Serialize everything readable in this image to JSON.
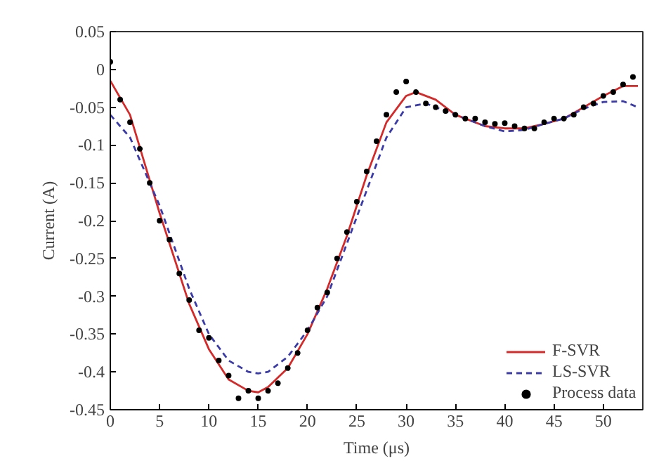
{
  "chart_data": {
    "type": "line",
    "xlabel": "Time (μs)",
    "ylabel": "Current (A)",
    "xlim": [
      0,
      54
    ],
    "ylim": [
      -0.45,
      0.05
    ],
    "xticks": [
      0,
      5,
      10,
      15,
      20,
      25,
      30,
      35,
      40,
      45,
      50
    ],
    "yticks": [
      0.05,
      0,
      -0.05,
      -0.1,
      -0.15,
      -0.2,
      -0.25,
      -0.3,
      -0.35,
      -0.4,
      -0.45
    ],
    "grid": false,
    "legend": "bottom right",
    "series": [
      {
        "name": "F-SVR",
        "color": "#d42a2a",
        "line_style": "solid",
        "x": [
          0,
          2,
          5,
          8,
          10,
          12,
          14,
          15,
          16,
          18,
          20,
          22,
          24,
          26,
          28,
          30,
          31,
          33,
          35,
          38,
          40,
          42,
          44,
          46,
          48,
          50,
          52,
          53.5
        ],
        "values": [
          -0.015,
          -0.06,
          -0.19,
          -0.31,
          -0.37,
          -0.41,
          -0.425,
          -0.427,
          -0.42,
          -0.395,
          -0.35,
          -0.29,
          -0.22,
          -0.14,
          -0.07,
          -0.035,
          -0.03,
          -0.04,
          -0.06,
          -0.075,
          -0.078,
          -0.078,
          -0.072,
          -0.065,
          -0.05,
          -0.035,
          -0.022,
          -0.022
        ]
      },
      {
        "name": "LS-SVR",
        "color": "#3a3aa8",
        "line_style": "dashed",
        "x": [
          0,
          2,
          5,
          8,
          10,
          12,
          14,
          15,
          16,
          18,
          20,
          22,
          24,
          26,
          28,
          30,
          32,
          35,
          38,
          40,
          42,
          44,
          46,
          48,
          50,
          52,
          53.5
        ],
        "values": [
          -0.06,
          -0.09,
          -0.18,
          -0.29,
          -0.35,
          -0.385,
          -0.4,
          -0.402,
          -0.4,
          -0.38,
          -0.345,
          -0.3,
          -0.23,
          -0.16,
          -0.09,
          -0.05,
          -0.045,
          -0.06,
          -0.075,
          -0.082,
          -0.08,
          -0.072,
          -0.065,
          -0.052,
          -0.043,
          -0.042,
          -0.05
        ]
      },
      {
        "name": "Process data",
        "type": "scatter",
        "color": "#000000",
        "marker": "circle",
        "x": [
          0,
          1,
          2,
          3,
          4,
          5,
          6,
          7,
          8,
          9,
          10,
          11,
          12,
          13,
          14,
          15,
          16,
          17,
          18,
          19,
          20,
          21,
          22,
          23,
          24,
          25,
          26,
          27,
          28,
          29,
          30,
          31,
          32,
          33,
          34,
          35,
          36,
          37,
          38,
          39,
          40,
          41,
          42,
          43,
          44,
          45,
          46,
          47,
          48,
          49,
          50,
          51,
          52,
          53
        ],
        "values": [
          0.01,
          -0.04,
          -0.07,
          -0.105,
          -0.15,
          -0.2,
          -0.225,
          -0.27,
          -0.305,
          -0.345,
          -0.355,
          -0.385,
          -0.405,
          -0.435,
          -0.425,
          -0.435,
          -0.425,
          -0.415,
          -0.395,
          -0.375,
          -0.345,
          -0.315,
          -0.295,
          -0.25,
          -0.215,
          -0.175,
          -0.135,
          -0.095,
          -0.06,
          -0.03,
          -0.016,
          -0.03,
          -0.045,
          -0.05,
          -0.055,
          -0.06,
          -0.065,
          -0.065,
          -0.07,
          -0.072,
          -0.071,
          -0.075,
          -0.078,
          -0.078,
          -0.07,
          -0.065,
          -0.065,
          -0.06,
          -0.05,
          -0.045,
          -0.035,
          -0.03,
          -0.02,
          -0.01
        ]
      }
    ]
  }
}
